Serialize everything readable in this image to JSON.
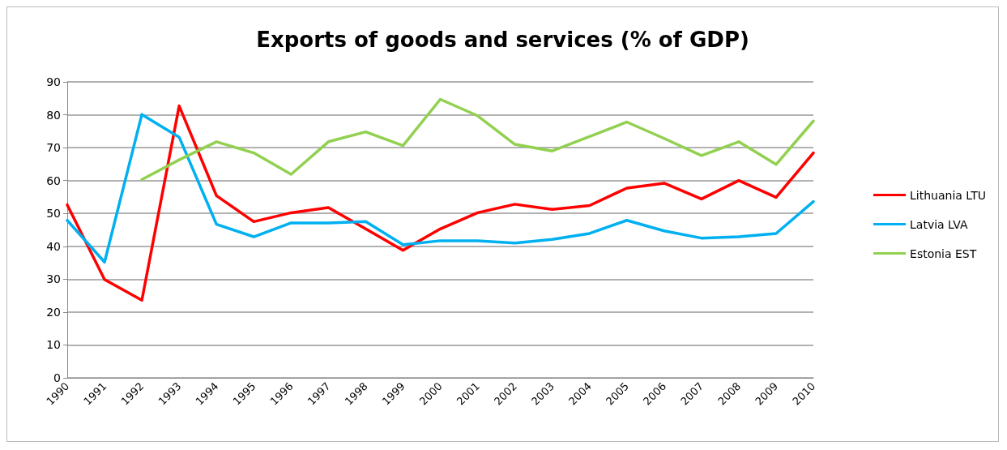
{
  "chart_data": {
    "type": "line",
    "title": "Exports of goods and services (% of GDP)",
    "categories": [
      "1990",
      "1991",
      "1992",
      "1993",
      "1994",
      "1995",
      "1996",
      "1997",
      "1998",
      "1999",
      "2000",
      "2001",
      "2002",
      "2003",
      "2004",
      "2005",
      "2006",
      "2007",
      "2008",
      "2009",
      "2010"
    ],
    "series": [
      {
        "name": "Lithuania LTU",
        "color": "#ff0000",
        "values": [
          52.6,
          29.9,
          23.6,
          82.7,
          55.4,
          47.5,
          50.2,
          51.8,
          45.3,
          38.8,
          45.3,
          50.2,
          52.8,
          51.2,
          52.4,
          57.7,
          59.2,
          54.4,
          60.0,
          54.9,
          68.4
        ]
      },
      {
        "name": "Latvia LVA",
        "color": "#00b0f0",
        "values": [
          47.9,
          35.2,
          80.1,
          73.2,
          46.7,
          42.9,
          47.1,
          47.1,
          47.5,
          40.5,
          41.7,
          41.7,
          41.0,
          42.1,
          43.9,
          47.9,
          44.7,
          42.5,
          42.9,
          43.9,
          53.6
        ]
      },
      {
        "name": "Estonia EST",
        "color": "#92d050",
        "values": [
          null,
          null,
          60.3,
          66.3,
          71.8,
          68.4,
          61.9,
          71.8,
          74.8,
          70.6,
          84.7,
          79.7,
          71.0,
          69.0,
          73.4,
          77.8,
          72.8,
          67.6,
          71.8,
          64.9,
          78.1
        ]
      }
    ],
    "ylim": [
      0,
      90
    ],
    "yticks": [
      0,
      10,
      20,
      30,
      40,
      50,
      60,
      70,
      80,
      90
    ],
    "grid": "y",
    "legend": "right",
    "marker": "none",
    "line_style": "solid"
  }
}
